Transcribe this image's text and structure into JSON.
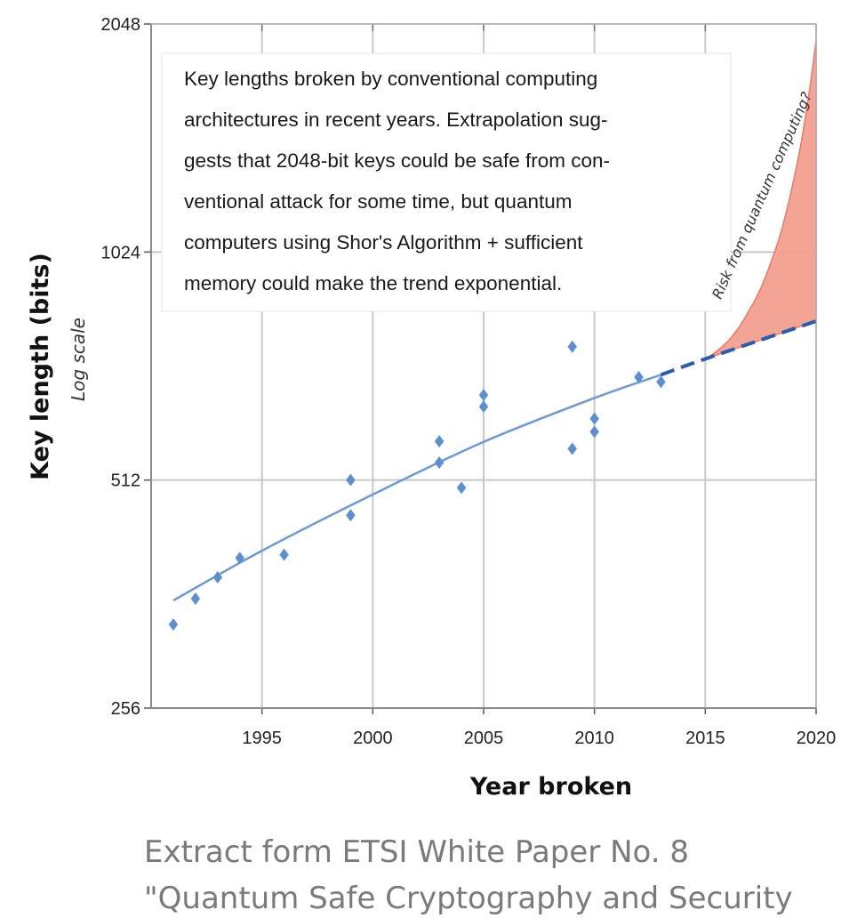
{
  "chart_data": {
    "type": "scatter",
    "xlabel": "Year broken",
    "ylabel": "Key length (bits)",
    "ylabel_sub": "Log scale",
    "y_scale": "log2",
    "xlim": [
      1990,
      2020
    ],
    "ylim": [
      256,
      2048
    ],
    "x_ticks": [
      1995,
      2000,
      2005,
      2010,
      2015,
      2020
    ],
    "y_ticks": [
      256,
      512,
      1024,
      2048
    ],
    "grid": true,
    "points": [
      {
        "x": 1991,
        "y": 330
      },
      {
        "x": 1992,
        "y": 357
      },
      {
        "x": 1993,
        "y": 381
      },
      {
        "x": 1994,
        "y": 404
      },
      {
        "x": 1996,
        "y": 408
      },
      {
        "x": 1999,
        "y": 512
      },
      {
        "x": 1999,
        "y": 460
      },
      {
        "x": 2003,
        "y": 576
      },
      {
        "x": 2003,
        "y": 540
      },
      {
        "x": 2004,
        "y": 500
      },
      {
        "x": 2005,
        "y": 663
      },
      {
        "x": 2005,
        "y": 640
      },
      {
        "x": 2009,
        "y": 768
      },
      {
        "x": 2009,
        "y": 563
      },
      {
        "x": 2010,
        "y": 617
      },
      {
        "x": 2010,
        "y": 593
      },
      {
        "x": 2012,
        "y": 700
      },
      {
        "x": 2013,
        "y": 690
      }
    ],
    "trend": [
      {
        "x": 1991,
        "y": 355
      },
      {
        "x": 1995,
        "y": 413
      },
      {
        "x": 2000,
        "y": 490
      },
      {
        "x": 2005,
        "y": 575
      },
      {
        "x": 2010,
        "y": 657
      },
      {
        "x": 2013,
        "y": 705
      }
    ],
    "trend_extrapolated": [
      {
        "x": 2013,
        "y": 705
      },
      {
        "x": 2015,
        "y": 740
      },
      {
        "x": 2020,
        "y": 830
      }
    ],
    "risk_region": {
      "label": "Risk from quantum computing?",
      "lower": [
        {
          "x": 2015,
          "y": 740
        },
        {
          "x": 2020,
          "y": 830
        }
      ],
      "upper": [
        {
          "x": 2015,
          "y": 740
        },
        {
          "x": 2016,
          "y": 780
        },
        {
          "x": 2017,
          "y": 860
        },
        {
          "x": 2018,
          "y": 1000
        },
        {
          "x": 2019,
          "y": 1280
        },
        {
          "x": 2020,
          "y": 1950
        }
      ]
    },
    "annotation_lines": [
      "Key lengths broken by conventional computing",
      "architectures in recent years.  Extrapolation sug-",
      "gests that 2048-bit keys could be safe from con-",
      "ventional attack for some time, but quantum",
      "computers using Shor's Algorithm + sufficient",
      "memory could make the trend exponential."
    ],
    "colors": {
      "marker": "#5b8fd0",
      "trend": "#6b9ad6",
      "extrapolation": "#2a5bb0",
      "risk_fill": "#f3a08f",
      "risk_edge": "#e8735f",
      "grid": "#c8c8c8"
    }
  },
  "caption": {
    "line1": "Extract form ETSI White Paper No. 8",
    "line2": "\"Quantum Safe Cryptography and Security"
  }
}
